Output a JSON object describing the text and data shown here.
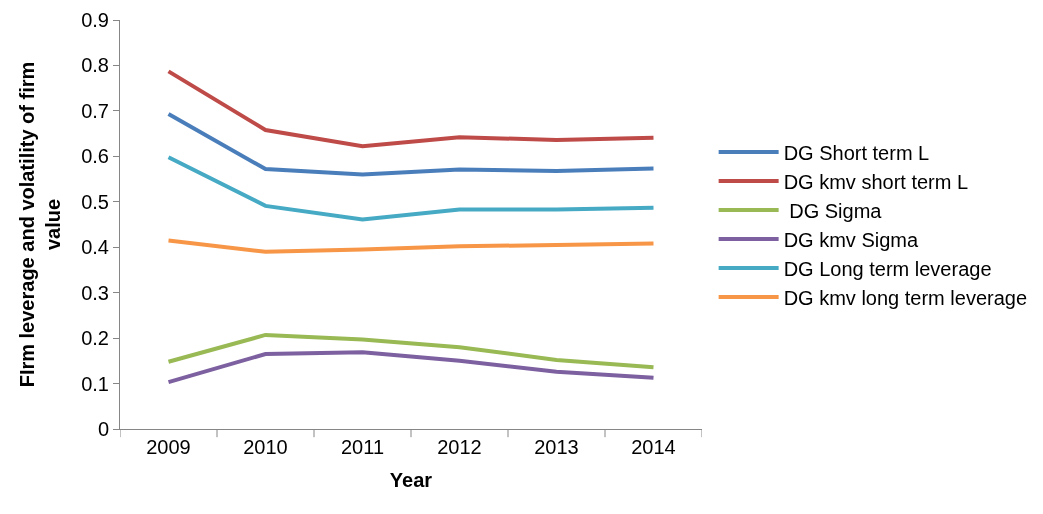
{
  "chart_data": {
    "type": "line",
    "xlabel": "Year",
    "ylabel": "FIrm leverage and volatility of firm value",
    "categories": [
      "2009",
      "2010",
      "2011",
      "2012",
      "2013",
      "2014"
    ],
    "series": [
      {
        "name": "DG Short term L",
        "color": "#4a7ebb",
        "values": [
          0.693,
          0.572,
          0.56,
          0.571,
          0.568,
          0.573
        ]
      },
      {
        "name": "DG kmv short term L",
        "color": "#be4b48",
        "values": [
          0.787,
          0.658,
          0.622,
          0.642,
          0.636,
          0.641
        ]
      },
      {
        "name": " DG Sigma",
        "color": "#98b954",
        "values": [
          0.148,
          0.207,
          0.197,
          0.18,
          0.152,
          0.136
        ]
      },
      {
        "name": "DG kmv Sigma",
        "color": "#7d60a0",
        "values": [
          0.103,
          0.165,
          0.169,
          0.15,
          0.126,
          0.113
        ]
      },
      {
        "name": "DG Long term leverage",
        "color": "#46aac5",
        "values": [
          0.598,
          0.491,
          0.461,
          0.483,
          0.483,
          0.487
        ]
      },
      {
        "name": "DG kmv long term leverage",
        "color": "#f79646",
        "values": [
          0.415,
          0.39,
          0.395,
          0.402,
          0.405,
          0.408
        ]
      }
    ],
    "ylim": [
      0,
      0.9
    ],
    "yticks": [
      0,
      0.1,
      0.2,
      0.3,
      0.4,
      0.5,
      0.6,
      0.7,
      0.8,
      0.9
    ],
    "grid": false,
    "legend": "right",
    "marker": "none",
    "line_style": "solid"
  }
}
